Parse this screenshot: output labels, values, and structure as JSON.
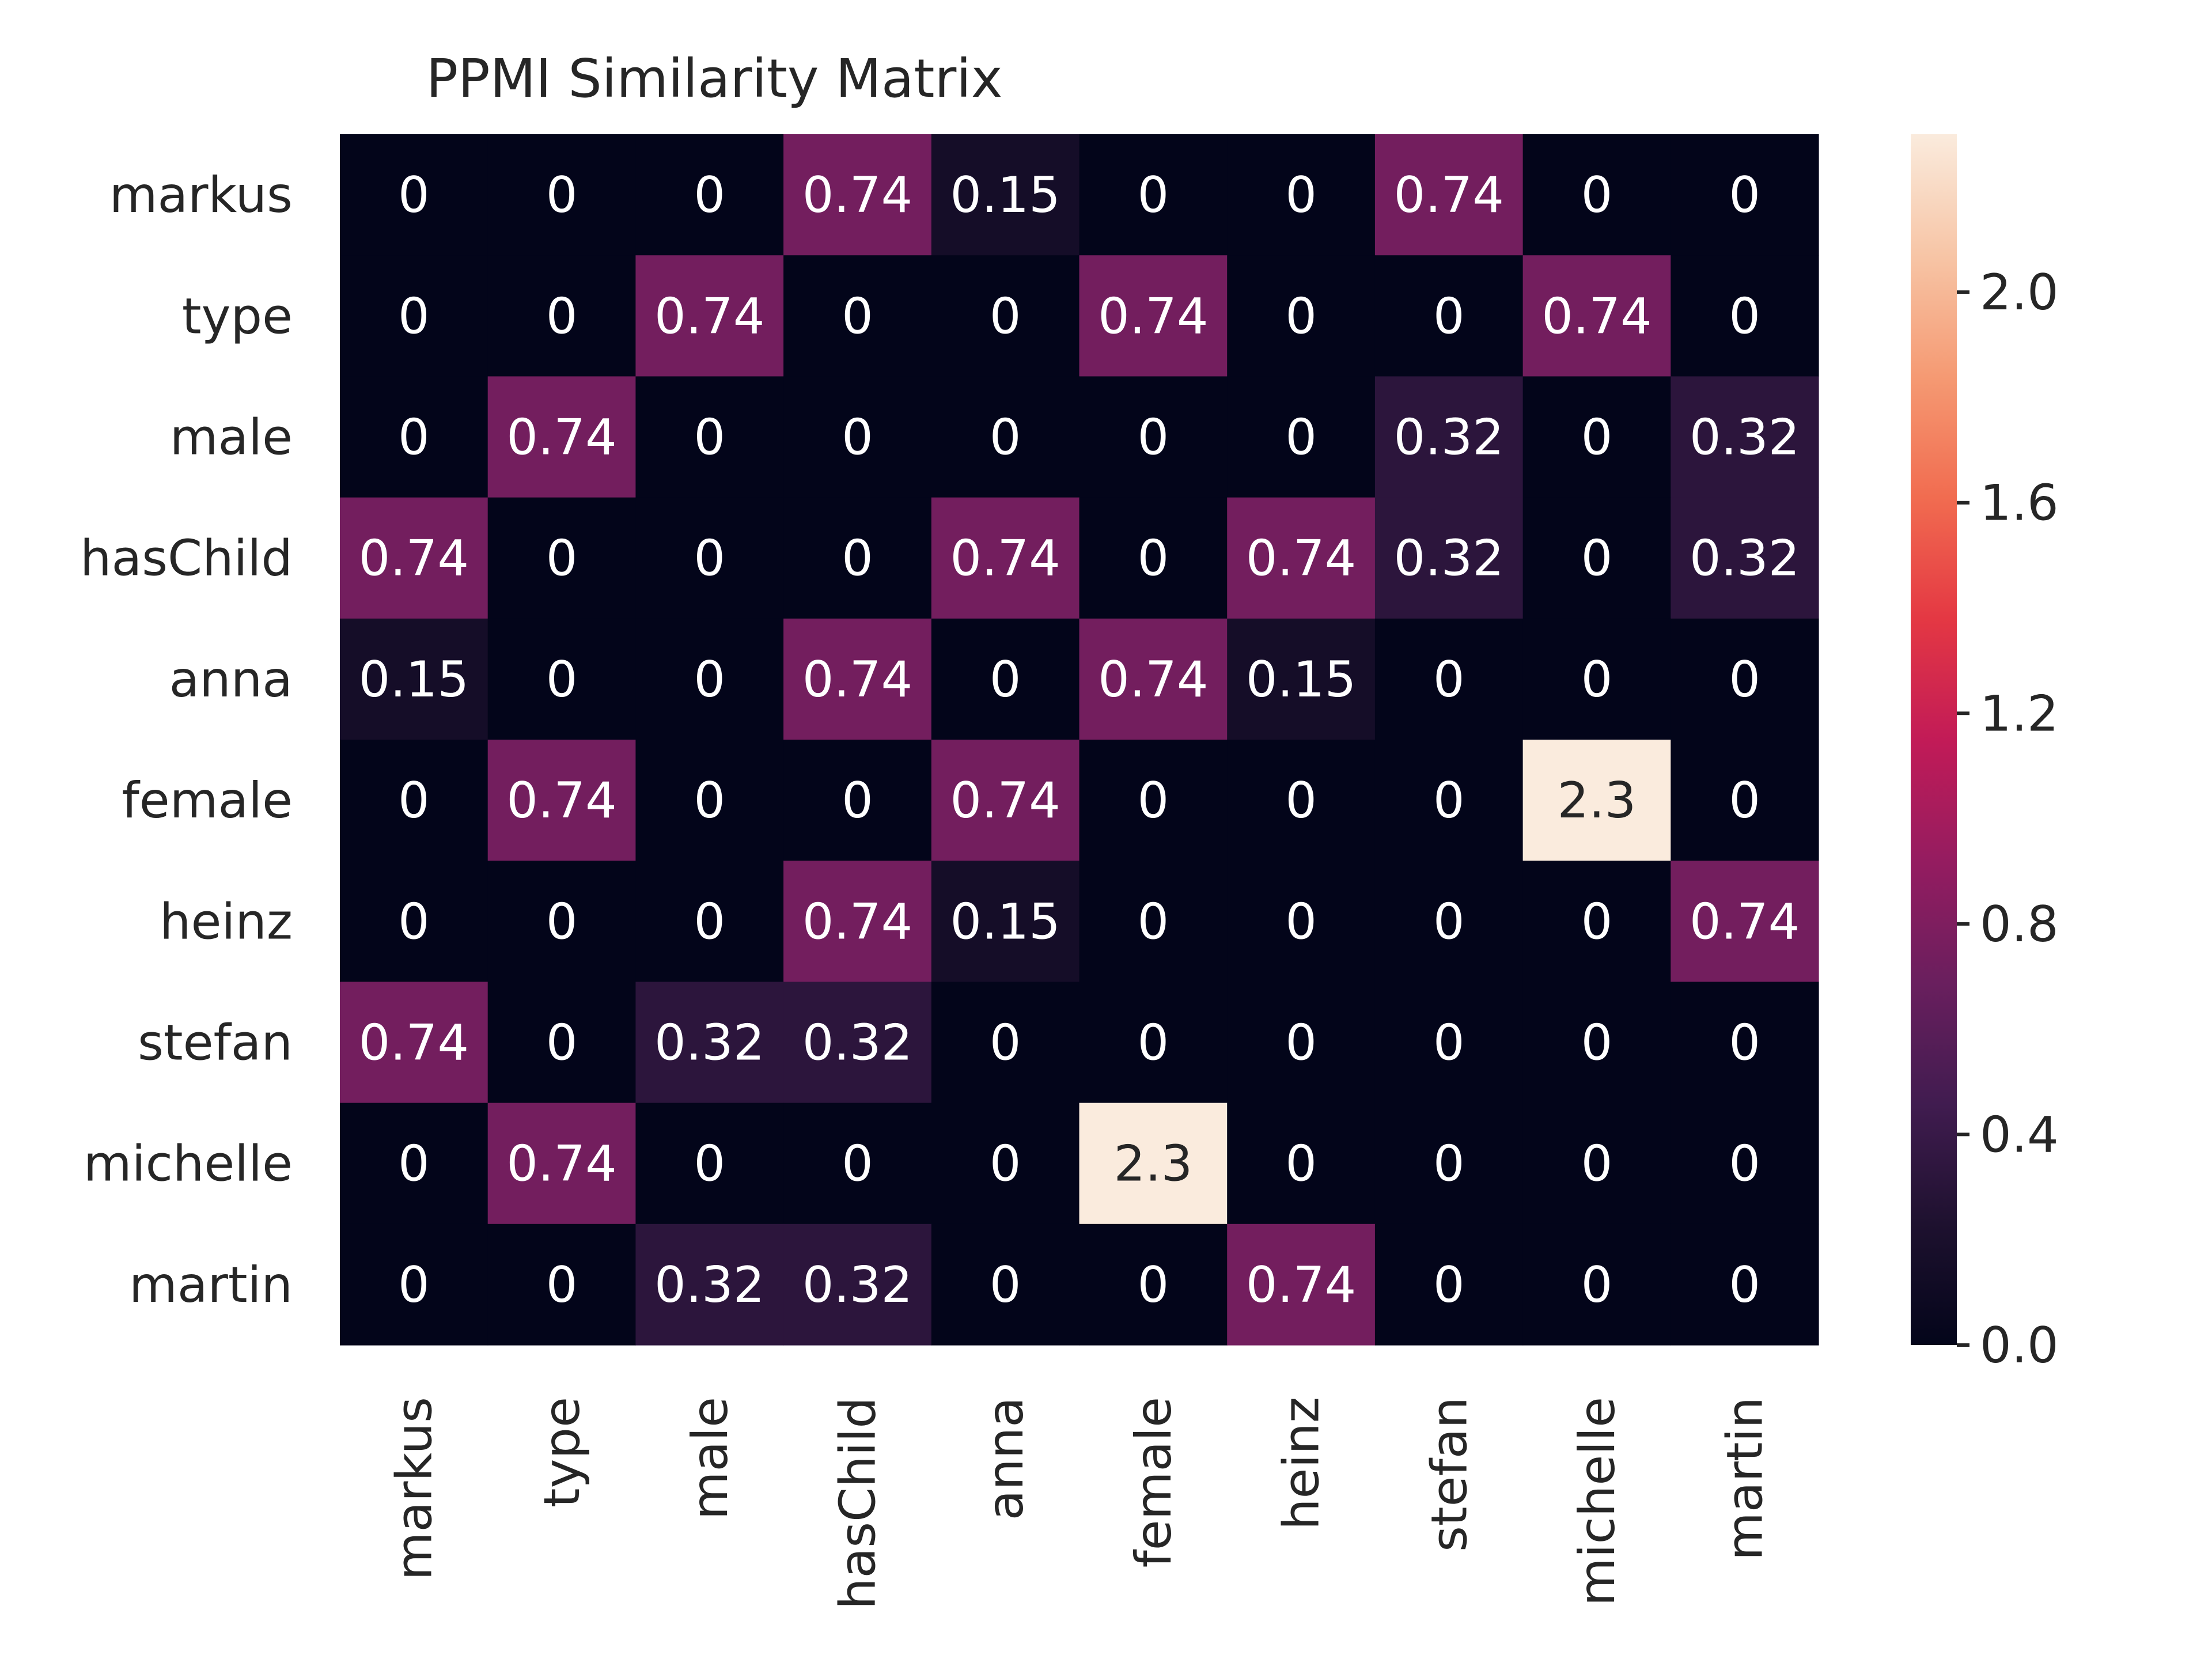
{
  "chart_data": {
    "type": "heatmap",
    "title": "PPMI Similarity Matrix",
    "xlabel": "",
    "ylabel": "",
    "row_labels": [
      "markus",
      "type",
      "male",
      "hasChild",
      "anna",
      "female",
      "heinz",
      "stefan",
      "michelle",
      "martin"
    ],
    "col_labels": [
      "markus",
      "type",
      "male",
      "hasChild",
      "anna",
      "female",
      "heinz",
      "stefan",
      "michelle",
      "martin"
    ],
    "values": [
      [
        0,
        0,
        0,
        0.74,
        0.15,
        0,
        0,
        0.74,
        0,
        0
      ],
      [
        0,
        0,
        0.74,
        0,
        0,
        0.74,
        0,
        0,
        0.74,
        0
      ],
      [
        0,
        0.74,
        0,
        0,
        0,
        0,
        0,
        0.32,
        0,
        0.32
      ],
      [
        0.74,
        0,
        0,
        0,
        0.74,
        0,
        0.74,
        0.32,
        0,
        0.32
      ],
      [
        0.15,
        0,
        0,
        0.74,
        0,
        0.74,
        0.15,
        0,
        0,
        0
      ],
      [
        0,
        0.74,
        0,
        0,
        0.74,
        0,
        0,
        0,
        2.3,
        0
      ],
      [
        0,
        0,
        0,
        0.74,
        0.15,
        0,
        0,
        0,
        0,
        0.74
      ],
      [
        0.74,
        0,
        0.32,
        0.32,
        0,
        0,
        0,
        0,
        0,
        0
      ],
      [
        0,
        0.74,
        0,
        0,
        0,
        2.3,
        0,
        0,
        0,
        0
      ],
      [
        0,
        0,
        0.32,
        0.32,
        0,
        0,
        0.74,
        0,
        0,
        0
      ]
    ],
    "colorbar": {
      "range": [
        0.0,
        2.3
      ],
      "ticks": [
        0.0,
        0.4,
        0.8,
        1.2,
        1.6,
        2.0
      ],
      "tick_labels": [
        "0.0",
        "0.4",
        "0.8",
        "1.2",
        "1.6",
        "2.0"
      ]
    },
    "colormap": "rocket",
    "grid": false,
    "legend": "colorbar-right"
  }
}
